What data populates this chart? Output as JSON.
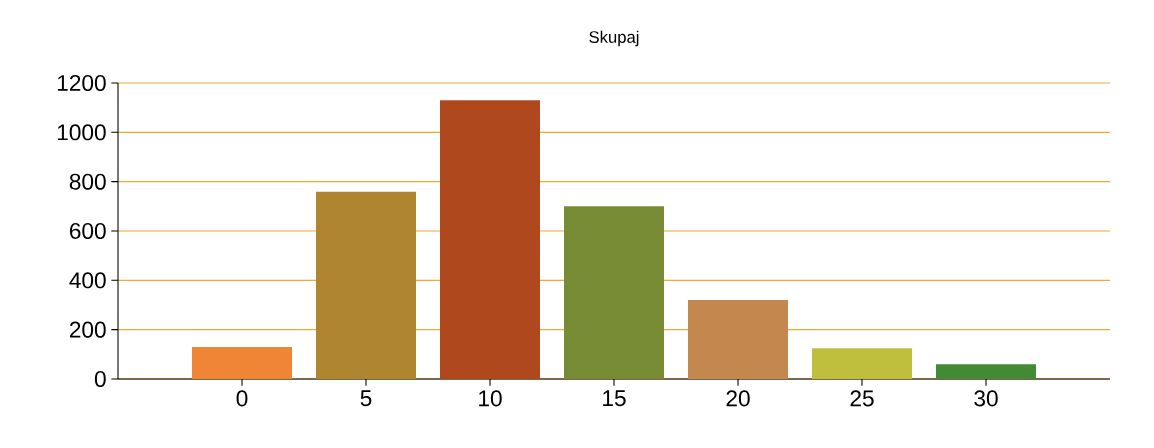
{
  "chart_data": {
    "type": "bar",
    "title": "Skupaj",
    "categories": [
      "0",
      "5",
      "10",
      "15",
      "20",
      "25",
      "30"
    ],
    "values": [
      130,
      760,
      1130,
      700,
      320,
      125,
      60
    ],
    "colors": [
      "#ef8535",
      "#b08530",
      "#b0481e",
      "#778b35",
      "#c4874d",
      "#c0be3d",
      "#428a34"
    ],
    "ylim": [
      0,
      1200
    ],
    "yticks": [
      0,
      200,
      400,
      600,
      800,
      1000,
      1200
    ],
    "grid": "y"
  }
}
